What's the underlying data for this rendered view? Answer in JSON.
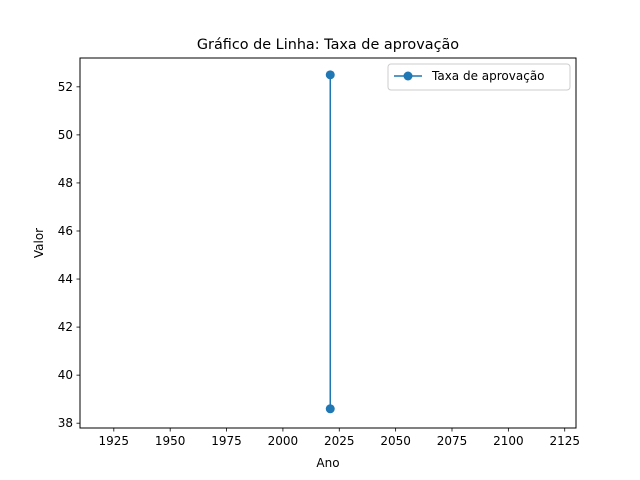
{
  "chart_data": {
    "type": "line",
    "title": "Gráfico de Linha: Taxa de aprovação",
    "xlabel": "Ano",
    "ylabel": "Valor",
    "xlim": [
      1910,
      2130
    ],
    "ylim": [
      37.8,
      53.2
    ],
    "xticks": [
      1925,
      1950,
      1975,
      2000,
      2025,
      2050,
      2075,
      2100,
      2125
    ],
    "yticks": [
      38,
      40,
      42,
      44,
      46,
      48,
      50,
      52
    ],
    "grid": false,
    "legend_position": "top-right",
    "series": [
      {
        "name": "Taxa de aprovação",
        "color": "#1f77b4",
        "marker": "circle",
        "points": [
          {
            "x": 2021,
            "y": 52.5
          },
          {
            "x": 2021,
            "y": 38.6
          }
        ]
      }
    ]
  }
}
